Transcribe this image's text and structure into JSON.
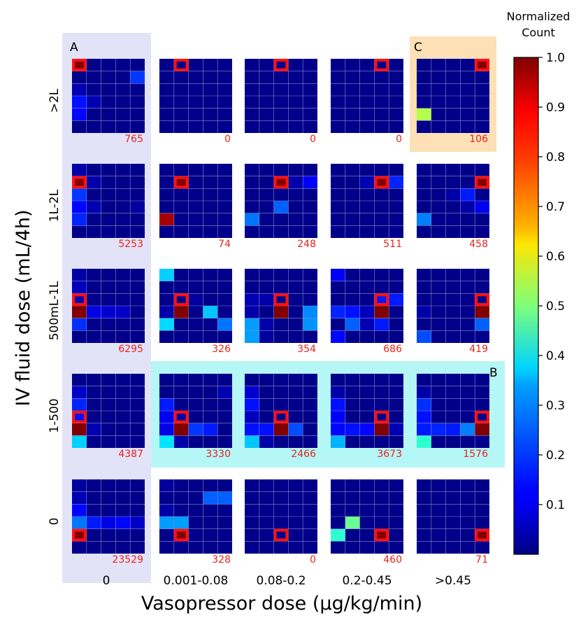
{
  "chart_data": {
    "type": "heatmap",
    "xlabel": "Vasopressor dose (μg/kg/min)",
    "ylabel": "IV fluid dose (mL/4h)",
    "col_labels": [
      "0",
      "0.001-0.08",
      "0.08-0.2",
      "0.2-0.45",
      ">0.45"
    ],
    "row_labels": [
      ">2L",
      "1L-2L",
      "500mL-1L",
      "1-500",
      "0"
    ],
    "colorbar": {
      "title_lines": [
        "Normalized",
        "Count"
      ],
      "ticks": [
        0.1,
        0.2,
        0.3,
        0.4,
        0.5,
        0.6,
        0.7,
        0.8,
        0.9,
        1.0
      ],
      "tick_labels": [
        "0.1",
        "0.2",
        "0.3",
        "0.4",
        "0.5",
        "0.6",
        "0.7",
        "0.8",
        "0.9",
        "1.0"
      ],
      "range": [
        0,
        1
      ],
      "colormap": "jet"
    },
    "highlights": [
      {
        "label": "A",
        "region": "column 0 (vasopressor dose 0), all fluid rows",
        "color": "#e3e3f8"
      },
      {
        "label": "B",
        "region": "row 1-500, vasopressor columns 0.001-0.08 to >0.45",
        "color": "#b5f6f6"
      },
      {
        "label": "C",
        "region": "row >2L, column >0.45",
        "color": "#fde0b6"
      }
    ],
    "count_color": "#e8231c",
    "panels": [
      [
        {
          "count": "765",
          "target": [
            0,
            0
          ],
          "cells": [
            [
              0,
              0,
              1.0
            ],
            [
              1,
              4,
              0.18
            ],
            [
              3,
              0,
              0.14
            ],
            [
              4,
              0,
              0.13
            ],
            [
              2,
              0,
              0.05
            ],
            [
              3,
              1,
              0.05
            ]
          ]
        },
        {
          "count": "0",
          "target": [
            0,
            1
          ],
          "cells": []
        },
        {
          "count": "0",
          "target": [
            0,
            2
          ],
          "cells": []
        },
        {
          "count": "0",
          "target": [
            0,
            3
          ],
          "cells": []
        },
        {
          "count": "106",
          "target": [
            0,
            4
          ],
          "cells": [
            [
              0,
              4,
              1.0
            ],
            [
              4,
              0,
              0.55
            ]
          ]
        }
      ],
      [
        {
          "count": "5253",
          "target": [
            1,
            0
          ],
          "cells": [
            [
              1,
              0,
              1.0
            ],
            [
              2,
              0,
              0.18
            ],
            [
              4,
              0,
              0.16
            ],
            [
              3,
              0,
              0.13
            ],
            [
              3,
              1,
              0.05
            ],
            [
              0,
              0,
              0.04
            ],
            [
              1,
              1,
              0.04
            ],
            [
              3,
              4,
              0.03
            ]
          ]
        },
        {
          "count": "74",
          "target": [
            1,
            1
          ],
          "cells": [
            [
              1,
              1,
              1.0
            ],
            [
              4,
              0,
              0.96
            ]
          ]
        },
        {
          "count": "248",
          "target": [
            1,
            2
          ],
          "cells": [
            [
              1,
              2,
              1.0
            ],
            [
              3,
              2,
              0.22
            ],
            [
              4,
              0,
              0.24
            ],
            [
              1,
              4,
              0.12
            ],
            [
              1,
              3,
              0.04
            ]
          ]
        },
        {
          "count": "511",
          "target": [
            1,
            3
          ],
          "cells": [
            [
              1,
              3,
              1.0
            ],
            [
              1,
              4,
              0.16
            ],
            [
              1,
              2,
              0.05
            ]
          ]
        },
        {
          "count": "458",
          "target": [
            1,
            4
          ],
          "cells": [
            [
              1,
              4,
              1.0
            ],
            [
              2,
              3,
              0.15
            ],
            [
              3,
              4,
              0.11
            ],
            [
              4,
              0,
              0.25
            ],
            [
              2,
              2,
              0.04
            ],
            [
              3,
              3,
              0.04
            ]
          ]
        }
      ],
      [
        {
          "count": "6295",
          "target": [
            2,
            0
          ],
          "cells": [
            [
              3,
              0,
              1.0
            ],
            [
              4,
              0,
              0.17
            ],
            [
              3,
              1,
              0.1
            ],
            [
              3,
              2,
              0.08
            ],
            [
              3,
              3,
              0.07
            ],
            [
              2,
              0,
              0.05
            ],
            [
              0,
              0,
              0.04
            ],
            [
              1,
              0,
              0.06
            ]
          ]
        },
        {
          "count": "326",
          "target": [
            2,
            1
          ],
          "cells": [
            [
              3,
              1,
              1.0
            ],
            [
              0,
              0,
              0.33
            ],
            [
              3,
              3,
              0.32
            ],
            [
              4,
              0,
              0.34
            ],
            [
              4,
              4,
              0.24
            ],
            [
              3,
              0,
              0.04
            ],
            [
              2,
              2,
              0.03
            ]
          ]
        },
        {
          "count": "354",
          "target": [
            2,
            2
          ],
          "cells": [
            [
              3,
              2,
              1.0
            ],
            [
              4,
              0,
              0.28
            ],
            [
              5,
              0,
              0.28
            ],
            [
              3,
              4,
              0.26
            ],
            [
              4,
              4,
              0.27
            ],
            [
              2,
              0,
              0.05
            ],
            [
              2,
              1,
              0.04
            ],
            [
              4,
              1,
              0.04
            ],
            [
              3,
              0,
              0.04
            ],
            [
              5,
              1,
              0.03
            ]
          ]
        },
        {
          "count": "686",
          "target": [
            2,
            3
          ],
          "cells": [
            [
              3,
              3,
              1.0
            ],
            [
              0,
              0,
              0.12
            ],
            [
              2,
              3,
              0.15
            ],
            [
              2,
              4,
              0.15
            ],
            [
              3,
              0,
              0.16
            ],
            [
              3,
              1,
              0.14
            ],
            [
              4,
              1,
              0.22
            ],
            [
              4,
              3,
              0.15
            ],
            [
              5,
              0,
              0.13
            ],
            [
              3,
              2,
              0.06
            ],
            [
              4,
              2,
              0.05
            ]
          ]
        },
        {
          "count": "419",
          "target": [
            2,
            4
          ],
          "cells": [
            [
              3,
              4,
              1.0
            ],
            [
              4,
              4,
              0.22
            ],
            [
              5,
              0,
              0.2
            ],
            [
              3,
              0,
              0.04
            ]
          ]
        }
      ],
      [
        {
          "count": "4387",
          "target": [
            3,
            0
          ],
          "cells": [
            [
              4,
              0,
              1.0
            ],
            [
              5,
              0,
              0.33
            ],
            [
              2,
              0,
              0.16
            ],
            [
              3,
              0,
              0.14
            ],
            [
              1,
              0,
              0.07
            ],
            [
              4,
              1,
              0.05
            ]
          ]
        },
        {
          "count": "3330",
          "target": [
            3,
            1
          ],
          "cells": [
            [
              4,
              1,
              1.0
            ],
            [
              5,
              0,
              0.35
            ],
            [
              2,
              0,
              0.15
            ],
            [
              3,
              0,
              0.11
            ],
            [
              4,
              2,
              0.18
            ],
            [
              4,
              3,
              0.15
            ],
            [
              4,
              0,
              0.1
            ],
            [
              1,
              4,
              0.05
            ],
            [
              3,
              1,
              0.04
            ],
            [
              5,
              1,
              0.04
            ]
          ]
        },
        {
          "count": "2466",
          "target": [
            3,
            2
          ],
          "cells": [
            [
              4,
              2,
              1.0
            ],
            [
              5,
              0,
              0.32
            ],
            [
              1,
              0,
              0.08
            ],
            [
              2,
              0,
              0.14
            ],
            [
              4,
              0,
              0.14
            ],
            [
              4,
              1,
              0.14
            ],
            [
              4,
              3,
              0.2
            ],
            [
              3,
              0,
              0.06
            ],
            [
              5,
              1,
              0.04
            ]
          ]
        },
        {
          "count": "3673",
          "target": [
            3,
            3
          ],
          "cells": [
            [
              4,
              3,
              1.0
            ],
            [
              5,
              0,
              0.3
            ],
            [
              2,
              0,
              0.14
            ],
            [
              3,
              0,
              0.12
            ],
            [
              4,
              0,
              0.13
            ],
            [
              4,
              1,
              0.14
            ],
            [
              4,
              2,
              0.13
            ],
            [
              4,
              4,
              0.05
            ],
            [
              1,
              0,
              0.04
            ]
          ]
        },
        {
          "count": "1576",
          "target": [
            3,
            4
          ],
          "cells": [
            [
              4,
              4,
              1.0
            ],
            [
              5,
              0,
              0.42
            ],
            [
              2,
              0,
              0.17
            ],
            [
              3,
              0,
              0.14
            ],
            [
              4,
              0,
              0.15
            ],
            [
              4,
              1,
              0.16
            ],
            [
              4,
              2,
              0.15
            ],
            [
              4,
              3,
              0.25
            ],
            [
              1,
              0,
              0.04
            ]
          ]
        }
      ],
      [
        {
          "count": "23529",
          "target": [
            4,
            0
          ],
          "cells": [
            [
              4,
              0,
              1.0
            ],
            [
              3,
              0,
              0.24
            ],
            [
              2,
              0,
              0.13
            ],
            [
              3,
              1,
              0.15
            ],
            [
              3,
              2,
              0.1
            ],
            [
              3,
              3,
              0.13
            ],
            [
              3,
              4,
              0.07
            ],
            [
              1,
              0,
              0.05
            ],
            [
              0,
              0,
              0.03
            ]
          ]
        },
        {
          "count": "328",
          "target": [
            4,
            1
          ],
          "cells": [
            [
              4,
              1,
              1.0
            ],
            [
              1,
              3,
              0.22
            ],
            [
              1,
              4,
              0.22
            ],
            [
              3,
              0,
              0.28
            ],
            [
              3,
              1,
              0.28
            ],
            [
              0,
              0,
              0.03
            ],
            [
              2,
              0,
              0.04
            ]
          ]
        },
        {
          "count": "0",
          "target": [
            4,
            2
          ],
          "cells": []
        },
        {
          "count": "460",
          "target": [
            4,
            3
          ],
          "cells": [
            [
              4,
              3,
              1.0
            ],
            [
              3,
              1,
              0.48
            ],
            [
              4,
              0,
              0.42
            ]
          ]
        },
        {
          "count": "71",
          "target": [
            4,
            4
          ],
          "cells": [
            [
              4,
              4,
              1.0
            ]
          ]
        }
      ]
    ]
  }
}
